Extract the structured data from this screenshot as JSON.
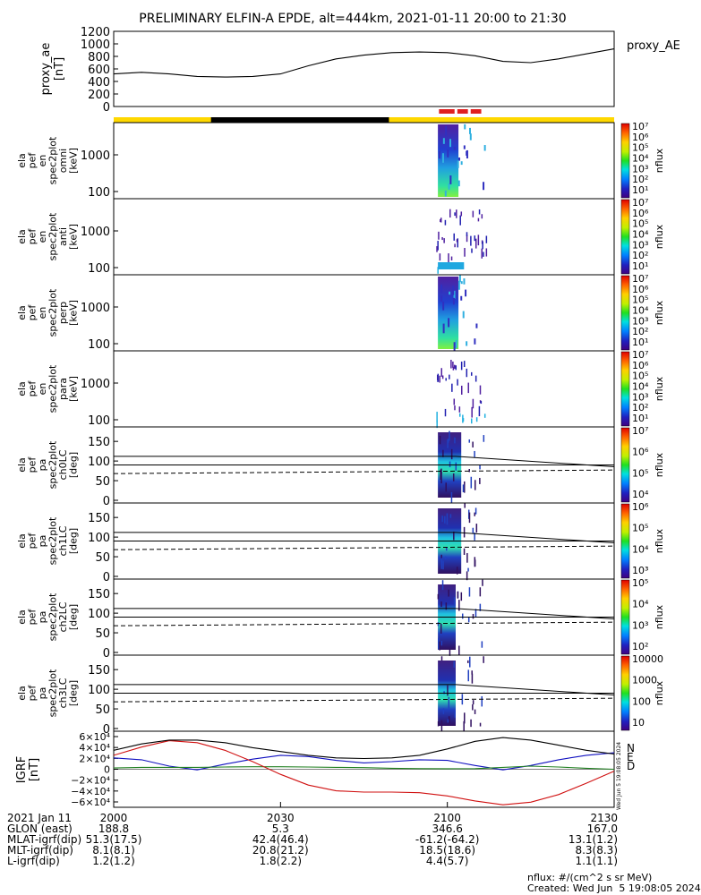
{
  "title": "PRELIMINARY ELFIN-A EPDE, alt=444km, 2021-01-11 20:00 to 21:30",
  "chart_data": [
    {
      "type": "line",
      "ylabel": "proxy_ae [nT]",
      "legend": "proxy_AE",
      "ylim": [
        0,
        1200
      ],
      "yticks": [
        "1200",
        "1000",
        "800",
        "600",
        "400",
        "200",
        "0"
      ],
      "x_minutes": [
        0,
        5,
        10,
        15,
        20,
        25,
        30,
        35,
        40,
        45,
        50,
        55,
        60,
        65,
        70,
        75,
        80,
        85,
        90
      ],
      "values": [
        520,
        545,
        520,
        480,
        470,
        480,
        520,
        650,
        760,
        820,
        860,
        870,
        860,
        810,
        720,
        700,
        760,
        840,
        920
      ]
    },
    {
      "type": "heatmap",
      "ylabel": [
        "ela",
        "pef",
        "en",
        "spec2plot",
        "omni",
        "[keV]"
      ],
      "yticks": [
        "1000",
        "100"
      ],
      "cbar_ticks": [
        "10⁷",
        "10⁶",
        "10⁵",
        "10⁴",
        "10³",
        "10²",
        "10¹"
      ],
      "cbar_label": "nflux"
    },
    {
      "type": "heatmap",
      "ylabel": [
        "ela",
        "pef",
        "en",
        "spec2plot",
        "anti",
        "[keV]"
      ],
      "yticks": [
        "1000",
        "100"
      ],
      "cbar_ticks": [
        "10⁷",
        "10⁶",
        "10⁵",
        "10⁴",
        "10³",
        "10²",
        "10¹"
      ],
      "cbar_label": "nflux"
    },
    {
      "type": "heatmap",
      "ylabel": [
        "ela",
        "pef",
        "en",
        "spec2plot",
        "perp",
        "[keV]"
      ],
      "yticks": [
        "1000",
        "100"
      ],
      "cbar_ticks": [
        "10⁷",
        "10⁶",
        "10⁵",
        "10⁴",
        "10³",
        "10²",
        "10¹"
      ],
      "cbar_label": "nflux"
    },
    {
      "type": "heatmap",
      "ylabel": [
        "ela",
        "pef",
        "en",
        "spec2plot",
        "para",
        "[keV]"
      ],
      "yticks": [
        "1000",
        "100"
      ],
      "cbar_ticks": [
        "10⁷",
        "10⁶",
        "10⁵",
        "10⁴",
        "10³",
        "10²",
        "10¹"
      ],
      "cbar_label": "nflux"
    },
    {
      "type": "heatmap",
      "ylabel": [
        "ela",
        "pef",
        "pa",
        "spec2plot",
        "ch0LC",
        "[deg]"
      ],
      "yticks": [
        "150",
        "100",
        "50",
        "0"
      ],
      "cbar_ticks": [
        "10⁷",
        "10⁶",
        "10⁵",
        "10⁴"
      ],
      "cbar_label": "nflux"
    },
    {
      "type": "heatmap",
      "ylabel": [
        "ela",
        "pef",
        "pa",
        "spec2plot",
        "ch1LC",
        "[deg]"
      ],
      "yticks": [
        "150",
        "100",
        "50",
        "0"
      ],
      "cbar_ticks": [
        "10⁶",
        "10⁵",
        "10⁴",
        "10³"
      ],
      "cbar_label": "nflux"
    },
    {
      "type": "heatmap",
      "ylabel": [
        "ela",
        "pef",
        "pa",
        "spec2plot",
        "ch2LC",
        "[deg]"
      ],
      "yticks": [
        "150",
        "100",
        "50",
        "0"
      ],
      "cbar_ticks": [
        "10⁵",
        "10⁴",
        "10³",
        "10²"
      ],
      "cbar_label": "nflux"
    },
    {
      "type": "heatmap",
      "ylabel": [
        "ela",
        "pef",
        "pa",
        "spec2plot",
        "ch3LC",
        "[deg]"
      ],
      "yticks": [
        "150",
        "100",
        "50",
        "0"
      ],
      "cbar_ticks": [
        "10000",
        "1000",
        "100",
        "10"
      ],
      "cbar_label": "nflux"
    },
    {
      "type": "line",
      "ylabel": "IGRF [nT]",
      "ylim": [
        -60000,
        60000
      ],
      "yticks": [
        "6×10⁴",
        "4×10⁴",
        "2×10⁴",
        "0",
        "−2×10⁴",
        "−4×10⁴",
        "−6×10⁴"
      ],
      "legend": [
        "N",
        "E",
        "D"
      ],
      "x_minutes": [
        0,
        5,
        10,
        15,
        20,
        25,
        30,
        35,
        40,
        45,
        50,
        55,
        60,
        65,
        70,
        75,
        80,
        85,
        90
      ],
      "series": [
        {
          "name": "N",
          "color": "#1010c0",
          "values": [
            18000,
            15000,
            5000,
            -1000,
            8000,
            16000,
            22000,
            20000,
            14000,
            10000,
            12000,
            15000,
            14000,
            6000,
            -1000,
            6000,
            15000,
            22000,
            26000
          ]
        },
        {
          "name": "E",
          "color": "#208020",
          "values": [
            2000,
            3000,
            3000,
            3000,
            3500,
            4000,
            4000,
            3500,
            3000,
            2500,
            1500,
            1000,
            800,
            1000,
            3000,
            5000,
            3500,
            1500,
            0
          ]
        },
        {
          "name": "D",
          "color": "#d01010",
          "values": [
            22000,
            35000,
            45000,
            42000,
            30000,
            12000,
            -8000,
            -25000,
            -34000,
            -36000,
            -36000,
            -37000,
            -42000,
            -50000,
            -56000,
            -52000,
            -40000,
            -22000,
            -3000
          ]
        },
        {
          "name": "total",
          "color": "#000000",
          "values": [
            30000,
            40000,
            46000,
            46000,
            42000,
            34000,
            28000,
            22000,
            18000,
            17000,
            18000,
            22000,
            32000,
            44000,
            50000,
            46000,
            38000,
            30000,
            24000
          ]
        }
      ]
    }
  ],
  "time_axis": {
    "header": "2021 Jan 11",
    "rows": [
      "GLON (east)",
      "MLAT-igrf(dip)",
      "MLT-igrf(dip)",
      "L-igrf(dip)"
    ],
    "ticks": [
      {
        "label": "2000",
        "values": [
          "188.8",
          "51.3(17.5)",
          "8.1(8.1)",
          "1.2(1.2)"
        ]
      },
      {
        "label": "2030",
        "values": [
          "5.3",
          "42.4(46.4)",
          "20.8(21.2)",
          "1.8(2.2)"
        ]
      },
      {
        "label": "2100",
        "values": [
          "346.6",
          "-61.2(-64.2)",
          "18.5(18.6)",
          "4.4(5.7)"
        ]
      },
      {
        "label": "2130",
        "values": [
          "167.0",
          "13.1(1.2)",
          "8.3(8.3)",
          "1.1(1.1)"
        ]
      }
    ]
  },
  "side_stamp": "Wed Jun  5 19:08:05 2024",
  "footer": {
    "units": "nflux: #/(cm^2 s sr MeV)",
    "created": "Created: Wed Jun  5 19:08:05 2024"
  },
  "colors": {
    "sunlit_bar": "#ffd800",
    "eclipse_bar": "#000000",
    "science_zone": "#e02020"
  }
}
